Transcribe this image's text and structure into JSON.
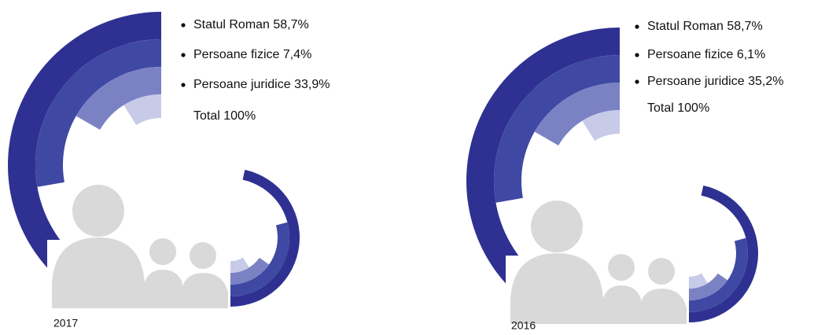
{
  "panels": [
    {
      "year": "2017",
      "items": [
        "Statul Roman 58,7%",
        "Persoane fizice 7,4%",
        "Persoane juridice 33,9%"
      ],
      "total": "Total 100%"
    },
    {
      "year": "2016",
      "items": [
        "Statul Roman 58,7%",
        "Persoane fizice 6,1%",
        "Persoane juridice 35,2%"
      ],
      "total": "Total 100%"
    }
  ]
}
